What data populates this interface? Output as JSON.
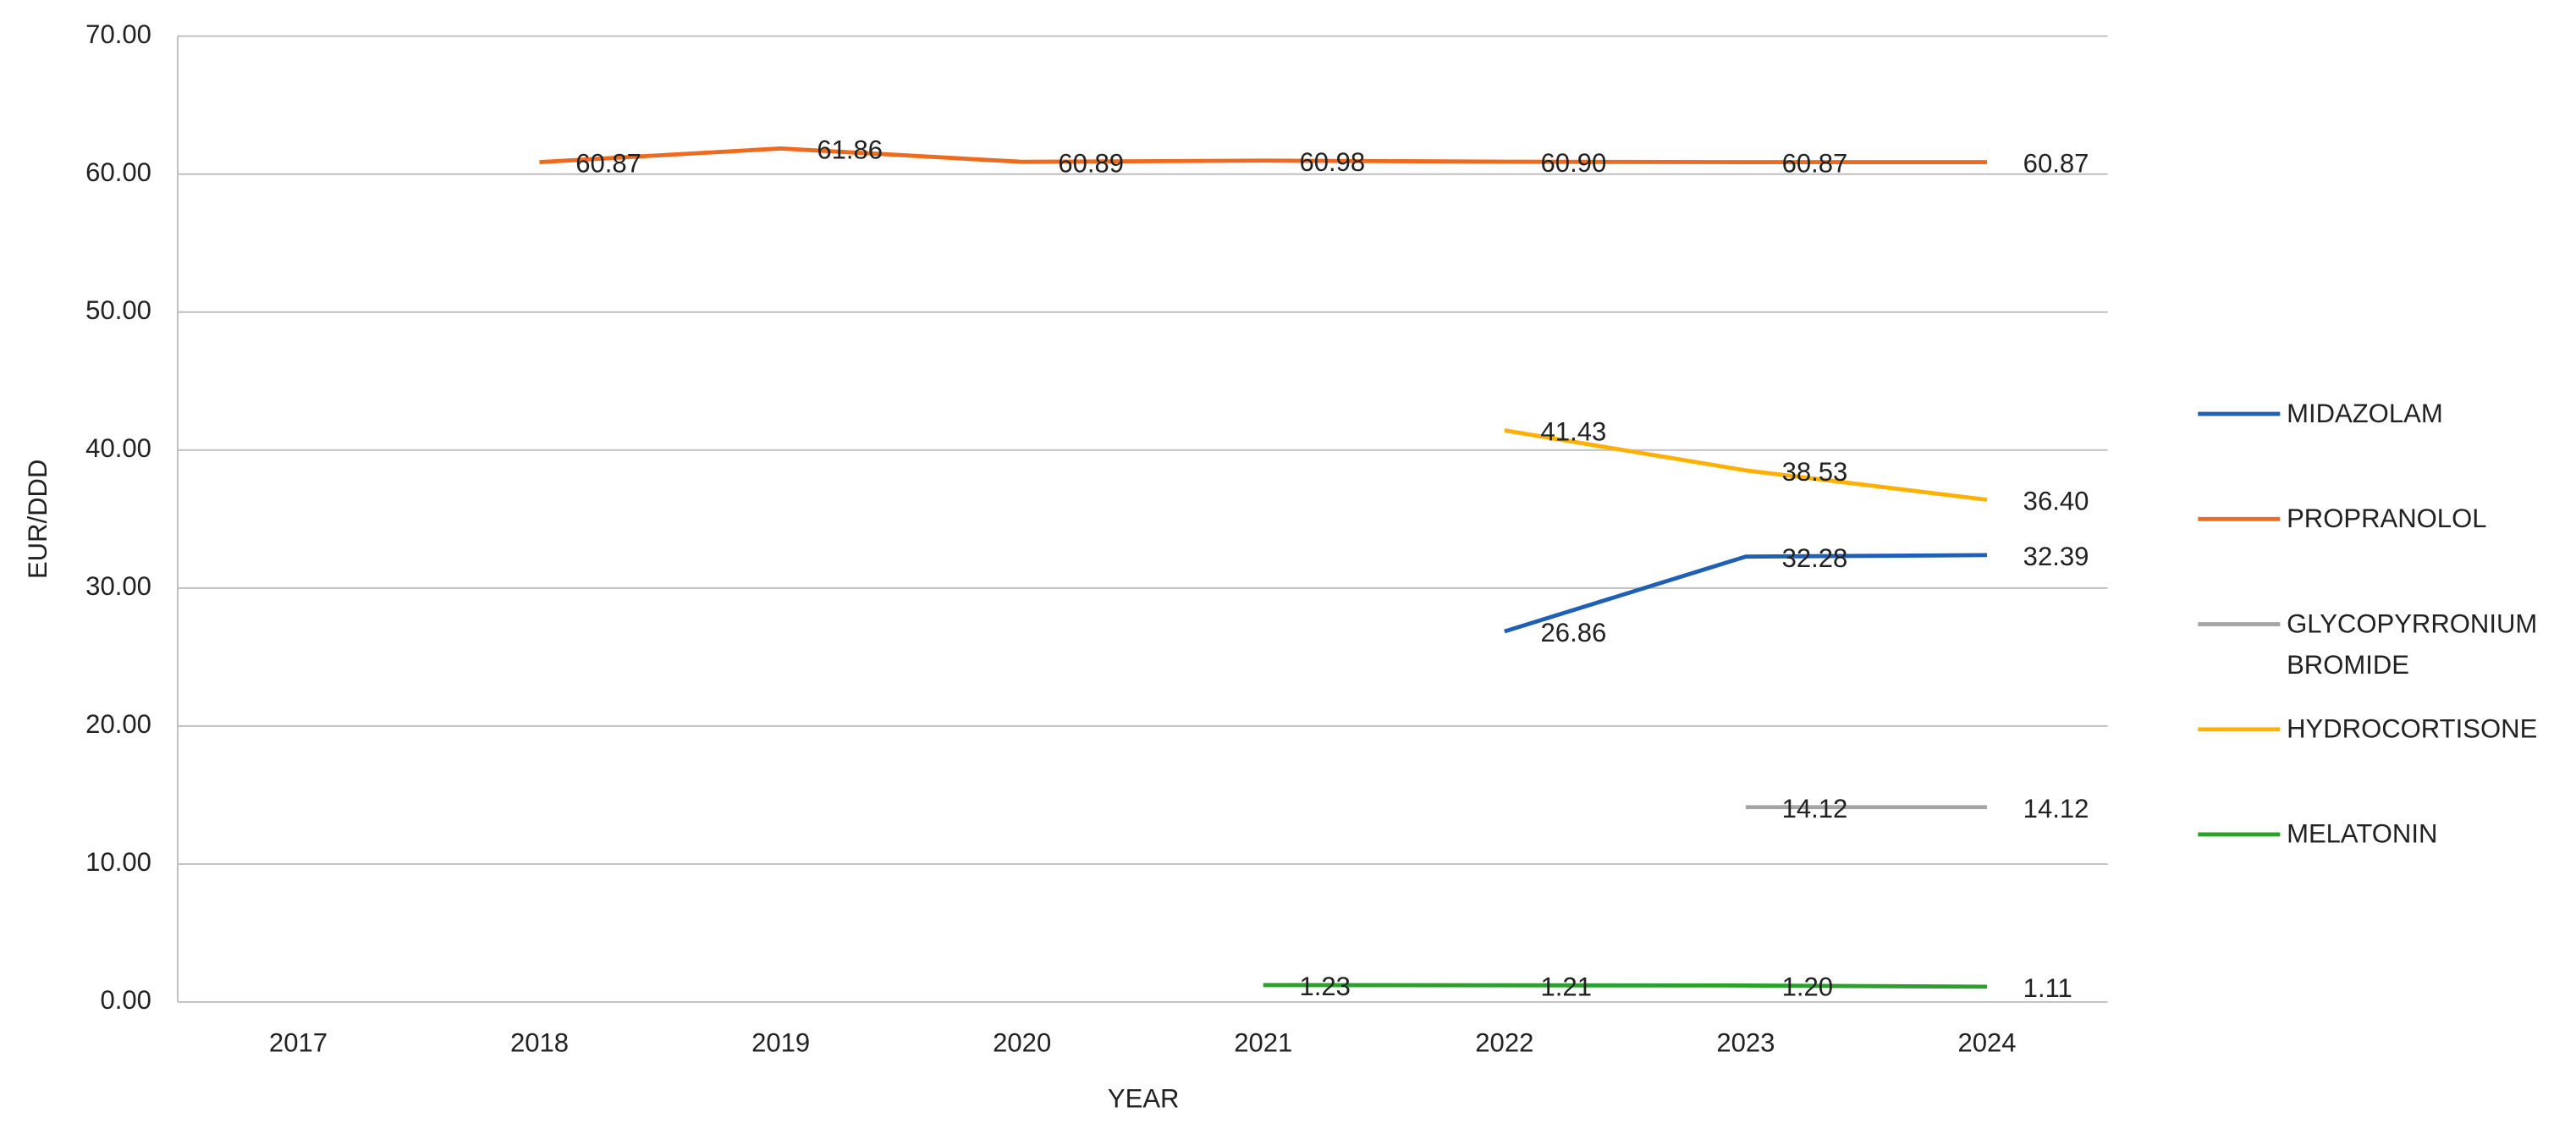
{
  "chart_data": {
    "type": "line",
    "x_label": "YEAR",
    "y_label": "EUR/DDD",
    "categories": [
      "2017",
      "2018",
      "2019",
      "2020",
      "2021",
      "2022",
      "2023",
      "2024"
    ],
    "ylim": [
      0,
      70
    ],
    "yticks": [
      {
        "value": 0,
        "label": "0.00"
      },
      {
        "value": 10,
        "label": "10.00"
      },
      {
        "value": 20,
        "label": "20.00"
      },
      {
        "value": 30,
        "label": "30.00"
      },
      {
        "value": 40,
        "label": "40.00"
      },
      {
        "value": 50,
        "label": "50.00"
      },
      {
        "value": 60,
        "label": "60.00"
      },
      {
        "value": 70,
        "label": "70.00"
      }
    ],
    "grid": true,
    "legend": "right",
    "series": [
      {
        "name": "MIDAZOLAM",
        "color": "#1f5fb4",
        "values": [
          null,
          null,
          null,
          null,
          null,
          26.86,
          32.28,
          32.39
        ],
        "value_labels": [
          null,
          null,
          null,
          null,
          null,
          "26.86",
          "32.28",
          "32.39"
        ]
      },
      {
        "name": "PROPRANOLOL",
        "color": "#ed6a1f",
        "values": [
          null,
          60.87,
          61.86,
          60.89,
          60.98,
          60.9,
          60.87,
          60.87
        ],
        "value_labels": [
          null,
          "60.87",
          "61.86",
          "60.89",
          "60.98",
          "60.90",
          "60.87",
          "60.87"
        ]
      },
      {
        "name": "GLYCOPYRRONIUM BROMIDE",
        "color": "#a5a5a5",
        "values": [
          null,
          null,
          null,
          null,
          null,
          null,
          14.12,
          14.12
        ],
        "value_labels": [
          null,
          null,
          null,
          null,
          null,
          null,
          "14.12",
          "14.12"
        ]
      },
      {
        "name": "HYDROCORTISONE",
        "color": "#ffb000",
        "values": [
          null,
          null,
          null,
          null,
          null,
          41.43,
          38.53,
          36.4
        ],
        "value_labels": [
          null,
          null,
          null,
          null,
          null,
          "41.43",
          "38.53",
          "36.40"
        ]
      },
      {
        "name": "MELATONIN",
        "color": "#2ca02c",
        "values": [
          null,
          null,
          null,
          null,
          1.23,
          1.21,
          1.2,
          1.11
        ],
        "value_labels": [
          null,
          null,
          null,
          null,
          "1.23",
          "1.21",
          "1.20",
          "1.11"
        ]
      }
    ]
  }
}
